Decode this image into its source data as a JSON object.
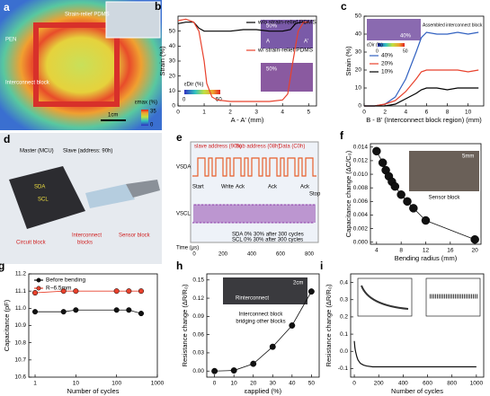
{
  "chart_data": [
    {
      "label": "b",
      "type": "line",
      "xlabel": "A - A' (mm)",
      "ylabel": "Strain (%)",
      "xlim": [
        0,
        5.3
      ],
      "xticks": [
        0,
        1,
        2,
        3,
        4,
        5
      ],
      "ylim": [
        0,
        60
      ],
      "yticks": [
        0,
        10,
        20,
        30,
        40,
        50
      ],
      "legend": "upper right",
      "series": [
        {
          "name": "w/o strain-relief PDMS",
          "color": "#000000",
          "x": [
            0,
            0.3,
            0.6,
            0.8,
            1.0,
            1.5,
            2,
            2.5,
            3,
            3.5,
            4,
            4.3,
            4.5,
            4.7,
            5
          ],
          "values": [
            55,
            56,
            56,
            52,
            50,
            50,
            50,
            51,
            51,
            50,
            50,
            51,
            55,
            56,
            56
          ]
        },
        {
          "name": "w/ strain-relief PDMS",
          "color": "#e8412c",
          "x": [
            0,
            0.3,
            0.6,
            0.8,
            1.0,
            1.1,
            1.3,
            1.5,
            2,
            2.5,
            3,
            3.5,
            4,
            4.2,
            4.4,
            4.6,
            4.8,
            5
          ],
          "values": [
            57,
            58,
            56,
            50,
            30,
            15,
            6,
            4,
            3,
            3,
            3,
            3,
            4,
            8,
            30,
            50,
            56,
            56
          ]
        }
      ],
      "annotations": [
        "50%",
        "A",
        "A'",
        "50%",
        "εDir (%)",
        "0",
        "50"
      ]
    },
    {
      "label": "c",
      "type": "line",
      "xlabel": "B - B' (Interconnect block region) (mm)",
      "ylabel": "Strain (%)",
      "xlim": [
        0,
        11.5
      ],
      "xticks": [
        0,
        2,
        4,
        6,
        8,
        10
      ],
      "ylim": [
        0,
        50
      ],
      "yticks": [
        0,
        10,
        20,
        30,
        40,
        50
      ],
      "legend": "center left",
      "series": [
        {
          "name": "40%",
          "color": "#3060c0",
          "x": [
            0,
            1,
            2,
            3,
            4,
            5,
            5.5,
            6,
            7,
            8,
            9,
            10,
            11
          ],
          "values": [
            0,
            0,
            1,
            5,
            15,
            30,
            38,
            41,
            40,
            40,
            41,
            40,
            41
          ]
        },
        {
          "name": "20%",
          "color": "#e8412c",
          "x": [
            0,
            1,
            2,
            3,
            4,
            5,
            5.5,
            6,
            7,
            8,
            9,
            10,
            11
          ],
          "values": [
            0,
            0,
            1,
            3,
            8,
            15,
            19,
            20,
            20,
            20,
            20,
            19,
            20
          ]
        },
        {
          "name": "10%",
          "color": "#000000",
          "x": [
            0,
            1,
            2,
            3,
            4,
            5,
            5.5,
            6,
            7,
            8,
            9,
            10,
            11
          ],
          "values": [
            0,
            0,
            0,
            1,
            4,
            7,
            9,
            10,
            10,
            9,
            10,
            10,
            10
          ]
        }
      ],
      "annotations": [
        "Assembled interconnect block",
        "40%",
        "εDir (%)",
        "0",
        "50"
      ]
    },
    {
      "label": "f",
      "type": "scatter",
      "xlabel": "Bending radius (mm)",
      "ylabel": "Capacitance change (ΔC/C₀)",
      "xlim": [
        3,
        21
      ],
      "xticks": [
        4,
        8,
        12,
        16,
        20
      ],
      "ylim": [
        -0.0003,
        0.0145
      ],
      "yticks": [
        {
          "value": 0,
          "label": "0.000"
        },
        {
          "value": 0.002,
          "label": "0.002"
        },
        {
          "value": 0.004,
          "label": "0.004"
        },
        {
          "value": 0.006,
          "label": "0.006"
        },
        {
          "value": 0.008,
          "label": "0.008"
        },
        {
          "value": 0.01,
          "label": "0.010"
        },
        {
          "value": 0.012,
          "label": "0.012"
        },
        {
          "value": 0.014,
          "label": "0.014"
        }
      ],
      "color": "#111111",
      "x": [
        4,
        5,
        5.5,
        6,
        6.5,
        7,
        8,
        9,
        10,
        12,
        20
      ],
      "values": [
        0.0134,
        0.0117,
        0.0106,
        0.0097,
        0.0089,
        0.0082,
        0.007,
        0.006,
        0.005,
        0.0032,
        0.0004
      ],
      "annotations": [
        "Sensor block",
        "5mm"
      ]
    },
    {
      "label": "g",
      "type": "scatter",
      "xscale": "log",
      "xlabel": "Number of cycles",
      "ylabel": "Capacitance (pF)",
      "xlim": [
        0.7,
        1000
      ],
      "xticks": [
        1,
        10,
        100,
        1000
      ],
      "ylim": [
        10.6,
        11.2
      ],
      "yticks": [
        {
          "value": 10.6,
          "label": "10.6"
        },
        {
          "value": 10.7,
          "label": "10.7"
        },
        {
          "value": 10.8,
          "label": "10.8"
        },
        {
          "value": 10.9,
          "label": "10.9"
        },
        {
          "value": 11,
          "label": "11.0"
        },
        {
          "value": 11.1,
          "label": "11.1"
        },
        {
          "value": 11.2,
          "label": "11.2"
        }
      ],
      "legend": "upper left",
      "series": [
        {
          "name": "Before bending",
          "color": "#111111",
          "x": [
            1,
            5,
            10,
            100,
            200,
            400
          ],
          "values": [
            10.98,
            10.98,
            10.99,
            10.99,
            10.99,
            10.97
          ]
        },
        {
          "name": "R~6.5mm",
          "color": "#e8412c",
          "x": [
            1,
            5,
            10,
            100,
            200,
            400
          ],
          "values": [
            11.09,
            11.1,
            11.1,
            11.1,
            11.1,
            11.1
          ]
        }
      ]
    },
    {
      "label": "h",
      "type": "scatter",
      "xlabel": "εapplied (%)",
      "ylabel": "Resistance change (ΔR/R₀)",
      "xlim": [
        -4,
        54
      ],
      "xticks": [
        0,
        10,
        20,
        30,
        40,
        50
      ],
      "ylim": [
        -0.01,
        0.16
      ],
      "yticks": [
        {
          "value": 0,
          "label": "0.00"
        },
        {
          "value": 0.03,
          "label": "0.03"
        },
        {
          "value": 0.06,
          "label": "0.06"
        },
        {
          "value": 0.09,
          "label": "0.09"
        },
        {
          "value": 0.12,
          "label": "0.12"
        },
        {
          "value": 0.15,
          "label": "0.15"
        }
      ],
      "color": "#111111",
      "x": [
        0,
        10,
        20,
        30,
        40,
        50
      ],
      "values": [
        0,
        0.001,
        0.012,
        0.04,
        0.075,
        0.131
      ],
      "annotations": [
        "Interconnect block",
        "bridging other blocks",
        "Rinterconnect",
        "2cm"
      ]
    },
    {
      "label": "i",
      "type": "line",
      "xlabel": "Number of cycles",
      "ylabel": "Resistance change (ΔR/R₀)",
      "xlim": [
        -30,
        1060
      ],
      "xticks": [
        0,
        200,
        400,
        600,
        800,
        1000
      ],
      "ylim": [
        -0.15,
        0.45
      ],
      "yticks": [
        {
          "value": -0.1,
          "label": "-0.1"
        },
        {
          "value": 0,
          "label": "0.0"
        },
        {
          "value": 0.1,
          "label": "0.1"
        },
        {
          "value": 0.2,
          "label": "0.2"
        },
        {
          "value": 0.3,
          "label": "0.3"
        },
        {
          "value": 0.4,
          "label": "0.4"
        }
      ],
      "series": [
        {
          "color": "#111111",
          "x": [
            0,
            5,
            10,
            20,
            30,
            50,
            75,
            100,
            150,
            200,
            300,
            400,
            500,
            600,
            700,
            800,
            900,
            1000
          ],
          "values": [
            0.06,
            0.02,
            0,
            -0.03,
            -0.05,
            -0.07,
            -0.08,
            -0.085,
            -0.09,
            -0.09,
            -0.09,
            -0.09,
            -0.09,
            -0.09,
            -0.09,
            -0.09,
            -0.09,
            -0.09
          ]
        }
      ]
    }
  ],
  "panel_a": {
    "label": "a",
    "strain_relief": "Strain-relief PDMS",
    "pen": "PEN",
    "interconnect": "Interconnect block",
    "colorbar_title": "εmax (%)",
    "colorbar_max": "35",
    "colorbar_min": "0",
    "scale": "1cm"
  },
  "panel_d": {
    "label": "d",
    "master": "Master (MCU)",
    "slave": "Slave (address: 90h)",
    "sda": "SDA",
    "scl": "SCL",
    "circuit": "Circuit block",
    "interconnect": "Interconnect",
    "interconnect2": "blocks",
    "sensor": "Sensor block"
  },
  "panel_e": {
    "label": "e",
    "segments": [
      "slave address (90h)",
      "Sub address (08h)",
      "Data (C0h)"
    ],
    "vsda": "VSDA",
    "vscl": "VSCL",
    "time": "Time (μs)",
    "time_ticks": [
      "0",
      "200",
      "400",
      "600",
      "800"
    ],
    "events": [
      "Start",
      "Write",
      "Ack",
      "Ack",
      "Ack",
      "Stop"
    ],
    "legend": [
      "SDA  0%  30%  after 300 cycles",
      "SCL  0%  30%  after 300 cycles"
    ]
  }
}
